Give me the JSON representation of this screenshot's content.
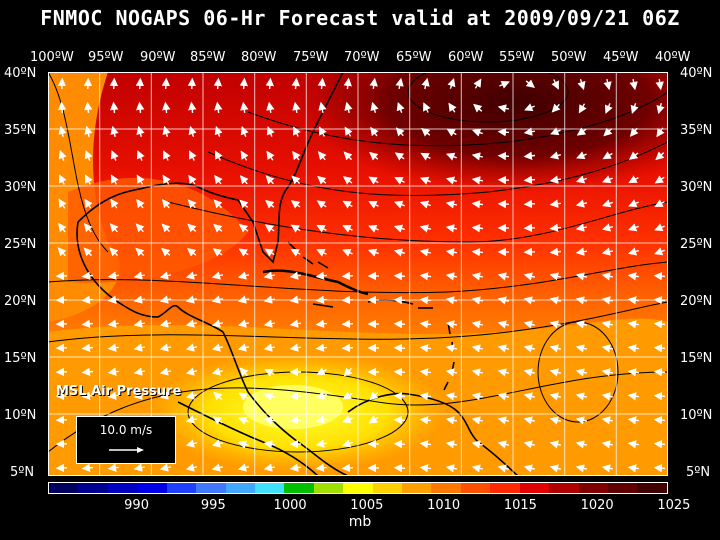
{
  "title": "FNMOC NOGAPS 06-Hr Forecast valid at 2009/09/21 06Z",
  "lon_labels": [
    "100ºW",
    "95ºW",
    "90ºW",
    "85ºW",
    "80ºW",
    "75ºW",
    "70ºW",
    "65ºW",
    "60ºW",
    "55ºW",
    "50ºW",
    "45ºW",
    "40ºW"
  ],
  "lat_labels": [
    "40ºN",
    "35ºN",
    "30ºN",
    "25ºN",
    "20ºN",
    "15ºN",
    "10ºN",
    "5ºN"
  ],
  "field_label": "MSL Air Pressure",
  "reference_vector": "10.0 m/s",
  "units": "mb",
  "colorbar": {
    "colors": [
      "#000060",
      "#000090",
      "#0000c0",
      "#0000e8",
      "#2040ff",
      "#4078ff",
      "#40a8ff",
      "#40e0ff",
      "#00c000",
      "#a0e000",
      "#ffff00",
      "#ffd000",
      "#ffa000",
      "#ff7800",
      "#ff5000",
      "#ff2800",
      "#e00000",
      "#b00000",
      "#800000",
      "#600000",
      "#400000"
    ],
    "tick_labels": [
      "990",
      "995",
      "1000",
      "1005",
      "1010",
      "1015",
      "1020",
      "1025"
    ]
  }
}
